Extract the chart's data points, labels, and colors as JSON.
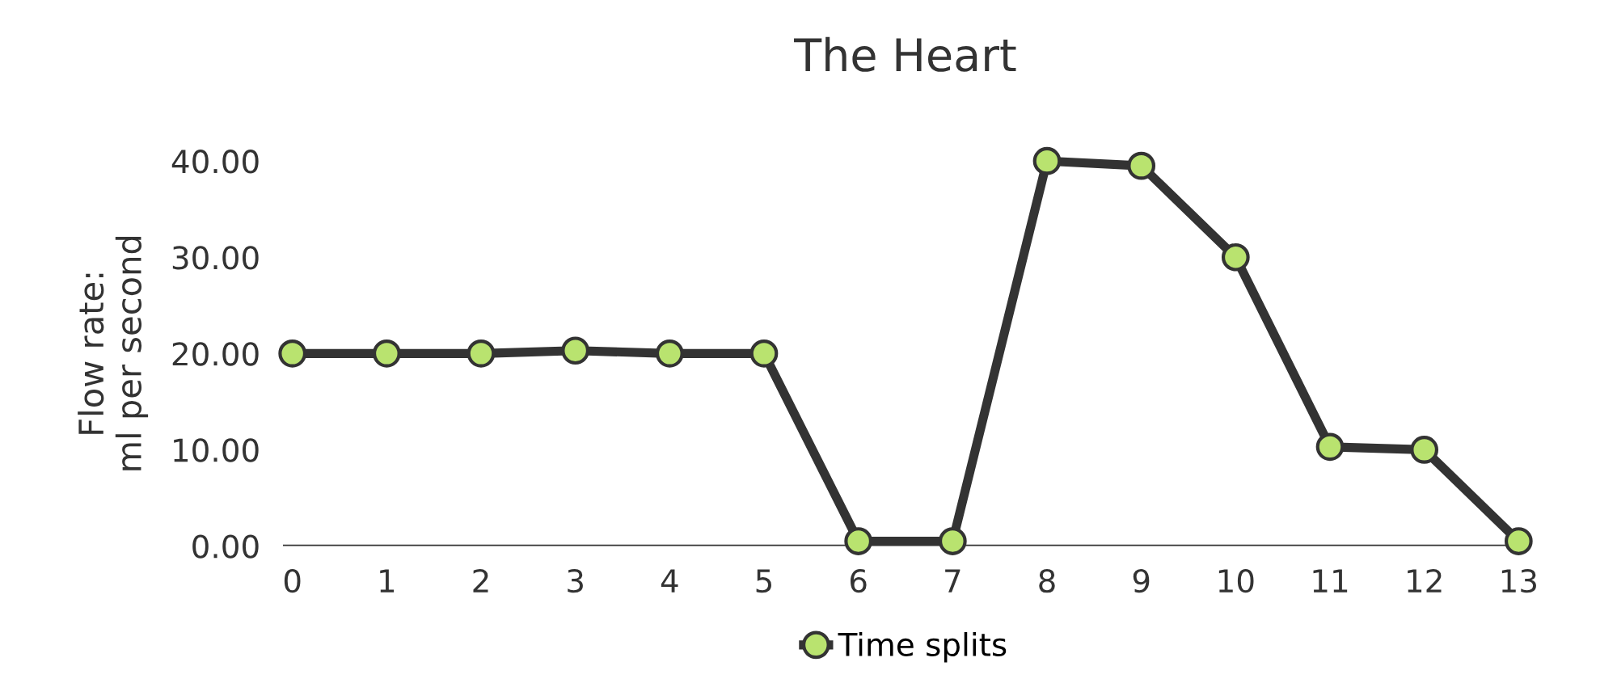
{
  "chart_data": {
    "type": "line",
    "title": "The Heart",
    "ylabel": "Flow rate:\nml per second",
    "categories": [
      "0",
      "1",
      "2",
      "3",
      "4",
      "5",
      "6",
      "7",
      "8",
      "9",
      "10",
      "11",
      "12",
      "13"
    ],
    "series": [
      {
        "name": "Time splits",
        "color": "#b9e36f",
        "values": [
          20,
          20,
          20,
          20.3,
          20,
          20,
          0.5,
          0.5,
          40,
          39.5,
          30,
          10.3,
          10,
          0.5
        ]
      }
    ],
    "marker": "circle",
    "ylim": [
      0,
      40
    ],
    "yticks": [
      {
        "value": 0,
        "label": "0.00"
      },
      {
        "value": 10,
        "label": "10.00"
      },
      {
        "value": 20,
        "label": "20.00"
      },
      {
        "value": 30,
        "label": "30.00"
      },
      {
        "value": 40,
        "label": "40.00"
      }
    ],
    "grid": false,
    "legend": "bottom"
  }
}
